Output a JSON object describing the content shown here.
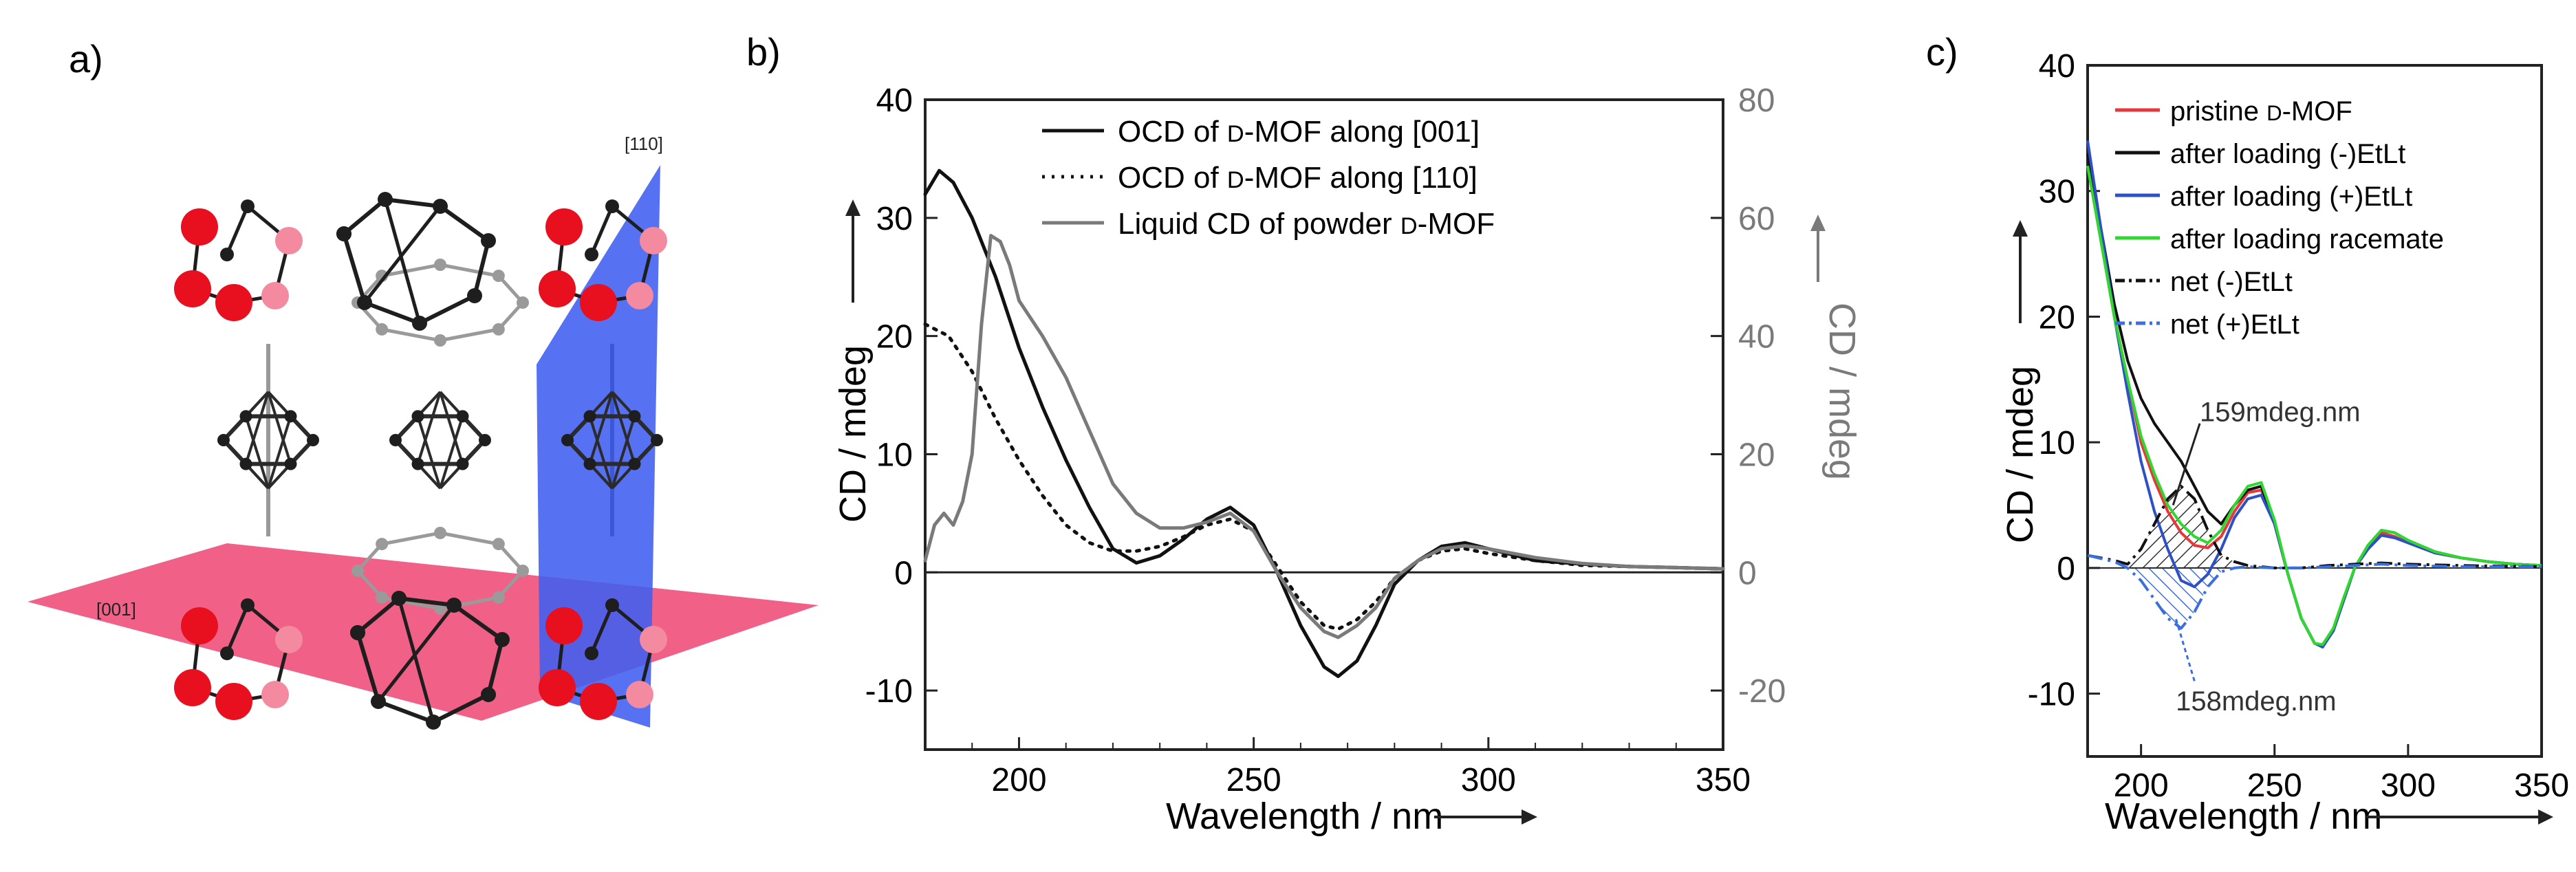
{
  "panels": {
    "a": {
      "label": "a)",
      "planes": [
        {
          "name": "[001]",
          "color": "#ef4f7a"
        },
        {
          "name": "[110]",
          "color": "#3f5ff0"
        }
      ],
      "atom_colors": {
        "oxygen": "#e8101e",
        "oxygen_back": "#f38aa0",
        "carbon": "#1e1e1e",
        "carbon_back": "#9a9a9a",
        "boron": "#2b2b2b"
      }
    }
  },
  "chart_data": [
    {
      "panel": "b)",
      "type": "line",
      "xlabel": "Wavelength / nm",
      "ylabel": "CD / mdeg",
      "y2label": "CD / mdeg",
      "xlim": [
        180,
        350
      ],
      "ylim": [
        -15,
        40
      ],
      "y2lim": [
        -30,
        80
      ],
      "xticks": [
        200,
        250,
        300,
        350
      ],
      "yticks": [
        -10,
        0,
        10,
        20,
        30,
        40
      ],
      "y2ticks": [
        -20,
        0,
        20,
        40,
        60,
        80
      ],
      "legend_position": "top-center",
      "series": [
        {
          "name": "OCD of D-MOF along [001]",
          "axis": "left",
          "color": "#111111",
          "style": "solid",
          "x": [
            180,
            183,
            186,
            190,
            195,
            200,
            205,
            210,
            215,
            220,
            225,
            230,
            235,
            240,
            245,
            250,
            255,
            260,
            265,
            268,
            272,
            276,
            280,
            285,
            290,
            295,
            300,
            310,
            320,
            330,
            340,
            350
          ],
          "y": [
            32,
            34,
            33,
            30,
            25,
            19,
            14,
            9.5,
            5.5,
            2,
            0.8,
            1.4,
            2.8,
            4.5,
            5.5,
            4,
            0,
            -4.5,
            -8,
            -8.8,
            -7.5,
            -4.5,
            -1,
            1,
            2.2,
            2.5,
            2,
            1,
            0.7,
            0.5,
            0.4,
            0.3
          ]
        },
        {
          "name": "OCD of D-MOF along [110]",
          "axis": "left",
          "color": "#111111",
          "style": "dotted",
          "x": [
            180,
            185,
            190,
            195,
            200,
            205,
            210,
            215,
            220,
            225,
            230,
            235,
            240,
            245,
            250,
            255,
            260,
            265,
            268,
            272,
            276,
            280,
            285,
            290,
            295,
            300,
            310,
            320,
            330,
            340,
            350
          ],
          "y": [
            21,
            20,
            17,
            13,
            9.5,
            6.5,
            4,
            2.5,
            1.8,
            1.8,
            2.2,
            3,
            4,
            4.5,
            3.5,
            0.5,
            -2.5,
            -4.5,
            -4.8,
            -4,
            -2.5,
            -0.5,
            1,
            1.8,
            2,
            1.6,
            1,
            0.6,
            0.5,
            0.4,
            0.3
          ]
        },
        {
          "name": "Liquid CD of powder D-MOF",
          "axis": "right",
          "color": "#7a7a7a",
          "style": "solid",
          "x": [
            180,
            182,
            184,
            186,
            188,
            190,
            192,
            194,
            196,
            198,
            200,
            205,
            210,
            215,
            220,
            225,
            230,
            235,
            240,
            245,
            250,
            255,
            260,
            265,
            268,
            272,
            276,
            280,
            285,
            290,
            295,
            300,
            310,
            320,
            330,
            340,
            350
          ],
          "y": [
            2,
            8,
            10,
            8,
            12,
            20,
            42,
            57,
            56,
            52,
            46,
            40,
            33,
            24,
            15,
            10,
            7.5,
            7.5,
            8.5,
            10,
            7,
            0,
            -6,
            -10,
            -11,
            -9,
            -6,
            -1,
            2,
            4,
            4.5,
            4,
            2.5,
            1.5,
            1,
            0.8,
            0.6
          ]
        }
      ]
    },
    {
      "panel": "c)",
      "type": "line",
      "xlabel": "Wavelength / nm",
      "ylabel": "CD / mdeg",
      "xlim": [
        180,
        350
      ],
      "ylim": [
        -15,
        40
      ],
      "xticks": [
        200,
        250,
        300,
        350
      ],
      "yticks": [
        -10,
        0,
        10,
        20,
        30,
        40
      ],
      "legend_position": "top-center",
      "annotations": [
        {
          "text": "159mdeg.nm",
          "x": 222,
          "y": 12.5
        },
        {
          "text": "158mdeg.nm",
          "x": 213,
          "y": -10.5
        }
      ],
      "series": [
        {
          "name": "pristine D-MOF",
          "color": "#e8363a",
          "style": "solid",
          "x": [
            180,
            185,
            190,
            195,
            200,
            205,
            210,
            215,
            220,
            225,
            230,
            235,
            240,
            245,
            250,
            255,
            260,
            265,
            268,
            272,
            276,
            280,
            285,
            290,
            295,
            300,
            310,
            320,
            330,
            340,
            350
          ],
          "y": [
            32,
            26,
            20,
            15,
            10,
            7,
            4.5,
            2.8,
            1.8,
            1.6,
            2.5,
            4.5,
            6,
            6.2,
            3.5,
            -0.5,
            -4,
            -6,
            -6.2,
            -5,
            -2.5,
            0,
            1.5,
            2.8,
            2.5,
            2,
            1.2,
            0.8,
            0.5,
            0.3,
            0.2
          ]
        },
        {
          "name": "after loading (-)EtLt",
          "color": "#111111",
          "style": "solid",
          "x": [
            180,
            185,
            190,
            195,
            200,
            205,
            210,
            215,
            220,
            225,
            230,
            235,
            240,
            245,
            250,
            255,
            260,
            265,
            268,
            272,
            276,
            280,
            285,
            290,
            295,
            300,
            310,
            320,
            330,
            340,
            350
          ],
          "y": [
            33,
            27,
            21,
            16.5,
            13.5,
            11.5,
            10,
            8.5,
            6.5,
            4.5,
            3.5,
            5,
            6.2,
            6.5,
            3.5,
            -0.5,
            -4,
            -6,
            -6.2,
            -5,
            -2.5,
            0,
            1.8,
            3,
            2.8,
            2.2,
            1.3,
            0.8,
            0.5,
            0.3,
            0.2
          ]
        },
        {
          "name": "after loading (+)EtLt",
          "color": "#2d4fc8",
          "style": "solid",
          "x": [
            180,
            185,
            190,
            195,
            200,
            205,
            210,
            215,
            220,
            225,
            230,
            235,
            240,
            245,
            250,
            255,
            260,
            265,
            268,
            272,
            276,
            280,
            285,
            290,
            295,
            300,
            310,
            320,
            330,
            340,
            350
          ],
          "y": [
            34,
            27,
            20,
            14,
            8.5,
            4.5,
            1.5,
            -1,
            -1.5,
            -0.5,
            1.5,
            4,
            5.5,
            5.8,
            3.5,
            -0.5,
            -4,
            -6,
            -6.3,
            -5,
            -2.5,
            0,
            1.5,
            2.6,
            2.4,
            2,
            1.2,
            0.8,
            0.5,
            0.3,
            0.2
          ]
        },
        {
          "name": "after loading racemate",
          "color": "#2fd82f",
          "style": "solid",
          "x": [
            180,
            185,
            190,
            195,
            200,
            205,
            210,
            215,
            220,
            225,
            230,
            235,
            240,
            245,
            250,
            255,
            260,
            265,
            268,
            272,
            276,
            280,
            285,
            290,
            295,
            300,
            310,
            320,
            330,
            340,
            350
          ],
          "y": [
            32,
            26,
            20,
            15,
            10.5,
            7.5,
            5,
            3.5,
            2.5,
            2,
            3,
            5,
            6.5,
            6.8,
            3.8,
            -0.5,
            -4,
            -6,
            -6.1,
            -4.8,
            -2.3,
            0,
            1.8,
            3,
            2.8,
            2.2,
            1.3,
            0.8,
            0.5,
            0.3,
            0.2
          ]
        },
        {
          "name": "net (-)EtLt",
          "color": "#111111",
          "style": "dashdot",
          "x": [
            180,
            190,
            195,
            200,
            205,
            210,
            215,
            220,
            225,
            230,
            235,
            240,
            250,
            260,
            270,
            280,
            290,
            300,
            320,
            350
          ],
          "y": [
            1,
            0.6,
            0.3,
            1.5,
            3.5,
            5.5,
            6.5,
            5.5,
            3,
            1,
            0.5,
            0.2,
            0,
            0,
            0.2,
            0.3,
            0.4,
            0.3,
            0.2,
            0.1
          ]
        },
        {
          "name": "net (+)EtLt",
          "color": "#3a6fe0",
          "style": "dashdot",
          "x": [
            180,
            190,
            195,
            200,
            205,
            210,
            215,
            220,
            225,
            230,
            235,
            240,
            250,
            260,
            270,
            280,
            290,
            300,
            320,
            350
          ],
          "y": [
            1,
            0.5,
            0,
            -1,
            -2.5,
            -4,
            -4.8,
            -3.5,
            -1.5,
            -0.3,
            0,
            0.1,
            0,
            0,
            0.1,
            0.2,
            0.3,
            0.2,
            0.1,
            0.1
          ]
        }
      ]
    }
  ]
}
